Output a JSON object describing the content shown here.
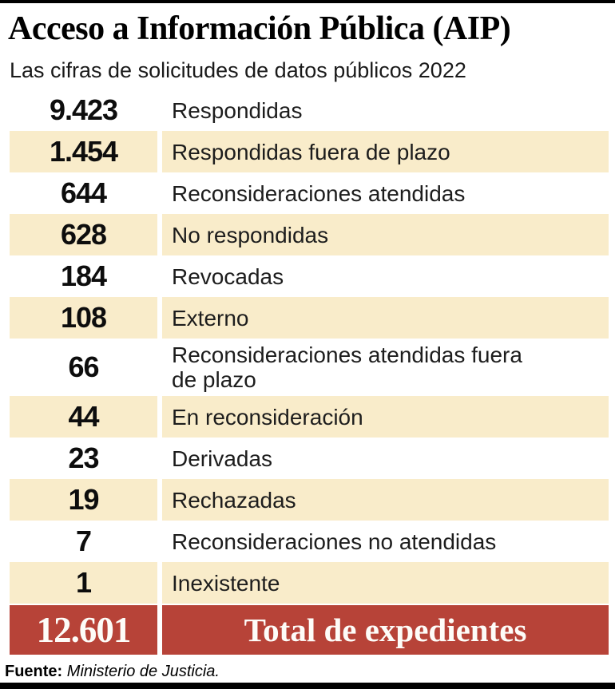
{
  "header": {
    "title": "Acceso a Información Pública (AIP)",
    "subtitle": "Las cifras de solicitudes de datos públicos 2022"
  },
  "chart_data": {
    "type": "table",
    "title": "Acceso a Información Pública (AIP)",
    "subtitle": "Las cifras de solicitudes de datos públicos 2022",
    "rows": [
      {
        "value_display": "9.423",
        "value": 9423,
        "label": "Respondidas",
        "highlight": false
      },
      {
        "value_display": "1.454",
        "value": 1454,
        "label": "Respondidas fuera de plazo",
        "highlight": true
      },
      {
        "value_display": "644",
        "value": 644,
        "label": "Reconsideraciones atendidas",
        "highlight": false
      },
      {
        "value_display": "628",
        "value": 628,
        "label": "No respondidas",
        "highlight": true
      },
      {
        "value_display": "184",
        "value": 184,
        "label": "Revocadas",
        "highlight": false
      },
      {
        "value_display": "108",
        "value": 108,
        "label": "Externo",
        "highlight": true
      },
      {
        "value_display": "66",
        "value": 66,
        "label": "Reconsideraciones atendidas fuera\nde plazo",
        "highlight": false
      },
      {
        "value_display": "44",
        "value": 44,
        "label": "En reconsideración",
        "highlight": true
      },
      {
        "value_display": "23",
        "value": 23,
        "label": "Derivadas",
        "highlight": false
      },
      {
        "value_display": "19",
        "value": 19,
        "label": "Rechazadas",
        "highlight": true
      },
      {
        "value_display": "7",
        "value": 7,
        "label": "Reconsideraciones no atendidas",
        "highlight": false
      },
      {
        "value_display": "1",
        "value": 1,
        "label": "Inexistente",
        "highlight": true
      }
    ],
    "total": {
      "value_display": "12.601",
      "value": 12601,
      "label": "Total de expedientes"
    }
  },
  "footer": {
    "source_label": "Fuente:",
    "source_text": "Ministerio de Justicia."
  },
  "colors": {
    "row_highlight": "#f9ecca",
    "total_bg": "#b74338",
    "total_text": "#fdfcf8",
    "border_bars": "#000000"
  }
}
